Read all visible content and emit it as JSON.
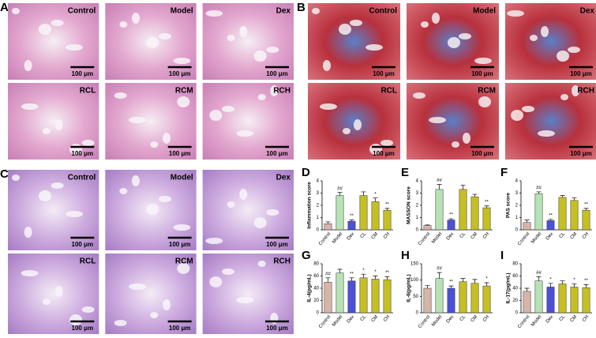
{
  "panels": [
    {
      "letter": "A",
      "scale_bar": "100 μm",
      "tiles": [
        "Control",
        "Model",
        "Dex",
        "RCL",
        "RCM",
        "RCH"
      ]
    },
    {
      "letter": "B",
      "scale_bar": "100 μm",
      "tiles": [
        "Control",
        "Model",
        "Dex",
        "RCL",
        "RCM",
        "RCH"
      ]
    },
    {
      "letter": "C",
      "scale_bar": "100 μm",
      "tiles": [
        "Control",
        "Model",
        "Dex",
        "RCL",
        "RCM",
        "RCH"
      ]
    }
  ],
  "chart_data": [
    {
      "type": "bar",
      "letter": "D",
      "ylabel": "Inflammation score",
      "categories": [
        "Control",
        "Model",
        "Dex",
        "CL",
        "CM",
        "CH"
      ],
      "values": [
        0.5,
        2.8,
        0.7,
        2.8,
        2.3,
        1.6
      ],
      "errors": [
        0.15,
        0.25,
        0.1,
        0.3,
        0.3,
        0.15
      ],
      "annotations": [
        null,
        "##",
        "**",
        null,
        "*",
        "**"
      ],
      "colors": [
        "#d8b4a8",
        "#b6e2b4",
        "#4a50d8",
        "#c6bf22",
        "#c6bf22",
        "#c6bf22"
      ],
      "ylim": [
        0,
        4
      ],
      "yticks": [
        0,
        1,
        2,
        3,
        4
      ]
    },
    {
      "type": "bar",
      "letter": "E",
      "ylabel": "MASSON score",
      "categories": [
        "Control",
        "Model",
        "Dex",
        "CL",
        "CM",
        "CH"
      ],
      "values": [
        0.35,
        3.3,
        0.8,
        3.3,
        2.7,
        1.8
      ],
      "errors": [
        0.05,
        0.4,
        0.1,
        0.35,
        0.2,
        0.15
      ],
      "annotations": [
        null,
        "##",
        "**",
        null,
        null,
        "**"
      ],
      "colors": [
        "#d8b4a8",
        "#b6e2b4",
        "#4a50d8",
        "#c6bf22",
        "#c6bf22",
        "#c6bf22"
      ],
      "ylim": [
        0,
        4
      ],
      "yticks": [
        0,
        1,
        2,
        3,
        4
      ]
    },
    {
      "type": "bar",
      "letter": "F",
      "ylabel": "PAS score",
      "categories": [
        "Control",
        "Model",
        "Dex",
        "CL",
        "CM",
        "CH"
      ],
      "values": [
        0.6,
        2.95,
        0.75,
        2.65,
        2.4,
        1.6
      ],
      "errors": [
        0.2,
        0.15,
        0.1,
        0.15,
        0.2,
        0.15
      ],
      "annotations": [
        null,
        "##",
        "**",
        null,
        null,
        "**"
      ],
      "colors": [
        "#d8b4a8",
        "#b6e2b4",
        "#4a50d8",
        "#c6bf22",
        "#c6bf22",
        "#c6bf22"
      ],
      "ylim": [
        0,
        4
      ],
      "yticks": [
        0,
        1,
        2,
        3,
        4
      ]
    },
    {
      "type": "bar",
      "letter": "G",
      "ylabel": "IL-4(pg/mL)",
      "categories": [
        "Control",
        "Model",
        "Dex",
        "CL",
        "CM",
        "CH"
      ],
      "values": [
        50,
        65,
        52,
        57,
        55,
        54
      ],
      "errors": [
        7,
        6,
        5,
        6,
        5,
        5
      ],
      "annotations": [
        "##",
        null,
        "**",
        "*",
        "*",
        "**"
      ],
      "colors": [
        "#d8b4a8",
        "#b6e2b4",
        "#4a50d8",
        "#c6bf22",
        "#c6bf22",
        "#c6bf22"
      ],
      "ylim": [
        0,
        80
      ],
      "yticks": [
        0,
        20,
        40,
        60,
        80
      ]
    },
    {
      "type": "bar",
      "letter": "H",
      "ylabel": "IL-6(pg/mL)",
      "categories": [
        "Control",
        "Model",
        "Dex",
        "CL",
        "CM",
        "CH"
      ],
      "values": [
        75,
        105,
        75,
        95,
        90,
        82
      ],
      "errors": [
        8,
        18,
        7,
        10,
        12,
        10
      ],
      "annotations": [
        null,
        "##",
        "**",
        null,
        null,
        "*"
      ],
      "colors": [
        "#d8b4a8",
        "#b6e2b4",
        "#4a50d8",
        "#c6bf22",
        "#c6bf22",
        "#c6bf22"
      ],
      "ylim": [
        0,
        150
      ],
      "yticks": [
        0,
        50,
        100,
        150
      ]
    },
    {
      "type": "bar",
      "letter": "I",
      "ylabel": "IL-17(pg/mL)",
      "categories": [
        "Control",
        "Model",
        "Dex",
        "CL",
        "CM",
        "CH"
      ],
      "values": [
        35,
        52,
        42,
        47,
        42,
        41
      ],
      "errors": [
        5,
        7,
        6,
        5,
        5,
        5
      ],
      "annotations": [
        null,
        "##",
        "*",
        null,
        "*",
        "**"
      ],
      "colors": [
        "#d8b4a8",
        "#b6e2b4",
        "#4a50d8",
        "#c6bf22",
        "#c6bf22",
        "#c6bf22"
      ],
      "ylim": [
        0,
        80
      ],
      "yticks": [
        0,
        20,
        40,
        60,
        80
      ]
    }
  ]
}
